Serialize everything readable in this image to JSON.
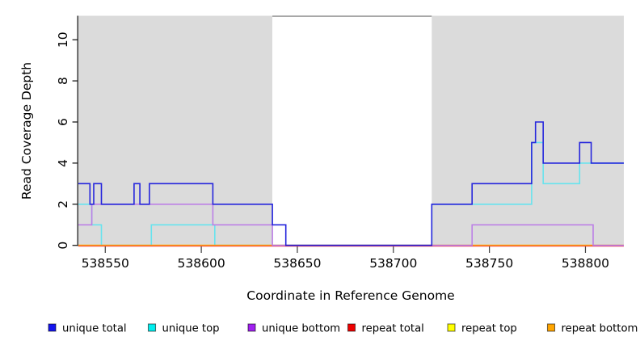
{
  "chart_data": {
    "type": "line",
    "step": true,
    "title": "",
    "xlabel": "Coordinate in Reference Genome",
    "ylabel": "Read Coverage Depth",
    "xlim": [
      538536,
      538820
    ],
    "ylim": [
      0,
      11.2
    ],
    "x_ticks": [
      "538550",
      "538600",
      "538650",
      "538700",
      "538750",
      "538800"
    ],
    "y_ticks": [
      "0",
      "2",
      "4",
      "6",
      "8",
      "10"
    ],
    "grid": "off",
    "legend_position": "bottom",
    "background_regions": [
      {
        "name": "shaded-left",
        "x0": 538536,
        "x1": 538637,
        "color": "#DBDBDB"
      },
      {
        "name": "uncovered-gap",
        "x0": 538637,
        "x1": 538720,
        "color": "#FFFFFF",
        "top_border": "#8A8A8A"
      },
      {
        "name": "shaded-right",
        "x0": 538720,
        "x1": 538820,
        "color": "#DBDBDB"
      }
    ],
    "series": [
      {
        "name": "unique total",
        "color": "#1515EE",
        "line_color": "#2525DC",
        "steps": [
          [
            538536,
            3
          ],
          [
            538542,
            2
          ],
          [
            538544,
            3
          ],
          [
            538548,
            2
          ],
          [
            538565,
            3
          ],
          [
            538568,
            2
          ],
          [
            538573,
            3
          ],
          [
            538606,
            2
          ],
          [
            538637,
            1
          ],
          [
            538644,
            0
          ],
          [
            538720,
            2
          ],
          [
            538741,
            3
          ],
          [
            538772,
            5
          ],
          [
            538774,
            6
          ],
          [
            538778,
            4
          ],
          [
            538797,
            5
          ],
          [
            538803,
            4
          ]
        ],
        "end": 538820
      },
      {
        "name": "unique top",
        "color": "#00EEEE",
        "line_color": "#67E3EE",
        "steps": [
          [
            538536,
            2
          ],
          [
            538543,
            1
          ],
          [
            538548,
            0
          ],
          [
            538574,
            1
          ],
          [
            538607,
            0
          ],
          [
            538720,
            2
          ],
          [
            538772,
            5
          ],
          [
            538778,
            3
          ],
          [
            538797,
            4
          ]
        ],
        "end": 538820
      },
      {
        "name": "unique bottom",
        "color": "#A020F0",
        "line_color": "#BC80E6",
        "steps": [
          [
            538536,
            1
          ],
          [
            538543,
            2
          ],
          [
            538606,
            1
          ],
          [
            538637,
            0
          ],
          [
            538741,
            1
          ],
          [
            538804,
            0
          ]
        ],
        "end": 538820
      },
      {
        "name": "repeat total",
        "color": "#EE0000",
        "line_color": "#E93648",
        "steps": [
          [
            538536,
            0
          ]
        ],
        "end": 538820
      },
      {
        "name": "repeat top",
        "color": "#FFFF00",
        "line_color": "#FFEE00",
        "steps": [
          [
            538536,
            0
          ]
        ],
        "end": 538820
      },
      {
        "name": "repeat bottom",
        "color": "#FFA500",
        "line_color": "#FF9414",
        "steps": [
          [
            538536,
            0
          ]
        ],
        "end": 538820
      }
    ],
    "legend": [
      {
        "label": "unique total",
        "color": "#1515EE"
      },
      {
        "label": "unique top",
        "color": "#00EEEE"
      },
      {
        "label": "unique bottom",
        "color": "#A020F0"
      },
      {
        "label": "repeat total",
        "color": "#EE0000"
      },
      {
        "label": "repeat top",
        "color": "#FFFF00"
      },
      {
        "label": "repeat bottom",
        "color": "#FFA500"
      }
    ]
  }
}
